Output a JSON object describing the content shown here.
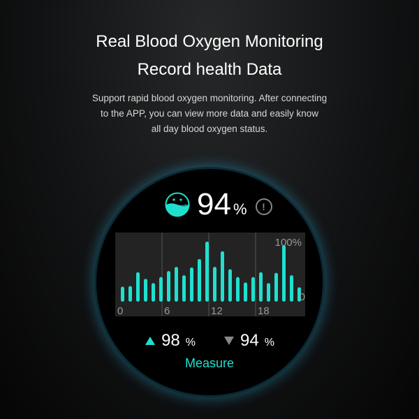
{
  "header": {
    "title_line1": "Real Blood Oxygen Monitoring",
    "title_line2": "Record health Data",
    "description_lines": [
      "Support rapid blood oxygen monitoring. After connecting",
      "to the APP, you can view more data and easily know",
      "all day blood oxygen status."
    ]
  },
  "watch": {
    "icon": "blood-oxygen-icon",
    "current_value": "94",
    "unit": "%",
    "info_icon": "exclamation-circle-icon",
    "max_label": "98",
    "min_label": "94",
    "stat_unit": "%",
    "measure_label": "Measure",
    "accent_color": "#1fe0cf"
  },
  "chart_data": {
    "type": "bar",
    "x": [
      0,
      1,
      2,
      3,
      4,
      5,
      6,
      7,
      8,
      9,
      10,
      11,
      12,
      13,
      14,
      15,
      16,
      17,
      18,
      19,
      20,
      21,
      22,
      23
    ],
    "values": [
      25,
      26,
      49,
      38,
      31,
      41,
      51,
      58,
      44,
      57,
      71,
      100,
      58,
      84,
      54,
      41,
      32,
      41,
      49,
      31,
      48,
      94,
      44,
      24
    ],
    "x_tick_labels": [
      "0",
      "6",
      "12",
      "18"
    ],
    "y_top_label": "100%",
    "y_bottom_label": "0",
    "ylim": [
      0,
      100
    ],
    "grid": "vertical",
    "color": "#1fe0cf"
  }
}
